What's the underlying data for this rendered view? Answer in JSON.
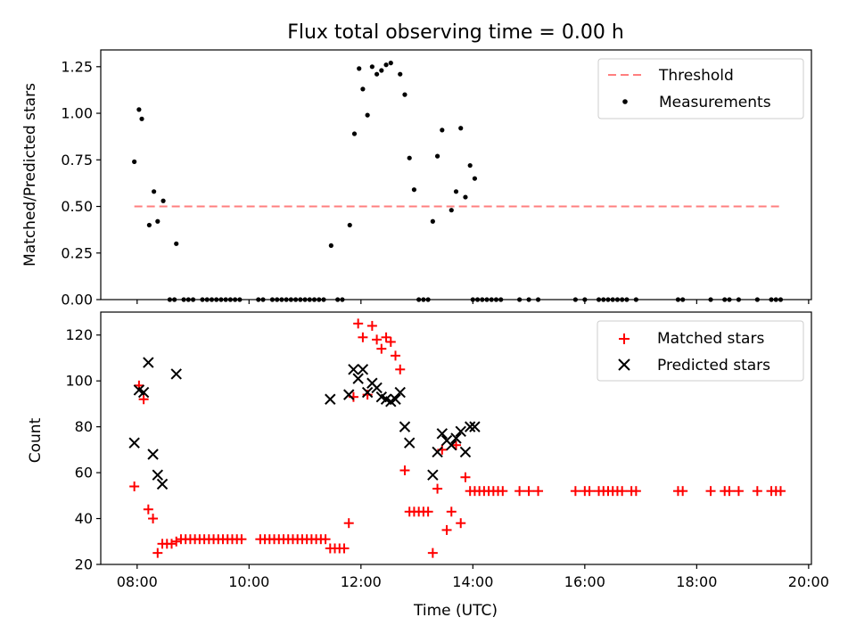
{
  "chart_data": [
    {
      "type": "scatter",
      "title": "Flux total observing time = 0.00 h",
      "xlabel": "",
      "ylabel": "Matched/Predicted stars",
      "xlim_hours": [
        7.35,
        20.05
      ],
      "ylim": [
        0,
        1.34
      ],
      "yticks": [
        "0.00",
        "0.25",
        "0.50",
        "0.75",
        "1.00",
        "1.25"
      ],
      "legend": {
        "position": "upper right",
        "entries": [
          "Threshold",
          "Measurements"
        ]
      },
      "colors": {
        "threshold": "#ff7f7f",
        "measurements": "#000000"
      },
      "threshold": {
        "value": 0.5,
        "x_range": [
          "07:57",
          "19:30"
        ]
      },
      "series": [
        {
          "name": "Measurements",
          "points": [
            [
              "07:57",
              0.74
            ],
            [
              "08:02",
              1.02
            ],
            [
              "08:05",
              0.97
            ],
            [
              "08:13",
              0.4
            ],
            [
              "08:18",
              0.58
            ],
            [
              "08:22",
              0.42
            ],
            [
              "08:28",
              0.53
            ],
            [
              "08:42",
              0.3
            ],
            [
              "11:28",
              0.29
            ],
            [
              "11:48",
              0.4
            ],
            [
              "11:53",
              0.89
            ],
            [
              "11:58",
              1.24
            ],
            [
              "12:02",
              1.13
            ],
            [
              "12:07",
              0.99
            ],
            [
              "12:12",
              1.25
            ],
            [
              "12:17",
              1.21
            ],
            [
              "12:22",
              1.23
            ],
            [
              "12:27",
              1.26
            ],
            [
              "12:32",
              1.27
            ],
            [
              "12:42",
              1.21
            ],
            [
              "12:47",
              1.1
            ],
            [
              "12:52",
              0.76
            ],
            [
              "12:57",
              0.59
            ],
            [
              "13:17",
              0.42
            ],
            [
              "13:22",
              0.77
            ],
            [
              "13:27",
              0.91
            ],
            [
              "13:37",
              0.48
            ],
            [
              "13:42",
              0.58
            ],
            [
              "13:47",
              0.92
            ],
            [
              "13:52",
              0.55
            ],
            [
              "13:57",
              0.72
            ],
            [
              "14:02",
              0.65
            ],
            [
              "08:35",
              0
            ],
            [
              "08:40",
              0
            ],
            [
              "08:50",
              0
            ],
            [
              "08:55",
              0
            ],
            [
              "09:00",
              0
            ],
            [
              "09:10",
              0
            ],
            [
              "09:15",
              0
            ],
            [
              "09:20",
              0
            ],
            [
              "09:25",
              0
            ],
            [
              "09:30",
              0
            ],
            [
              "09:35",
              0
            ],
            [
              "09:40",
              0
            ],
            [
              "09:45",
              0
            ],
            [
              "09:50",
              0
            ],
            [
              "10:10",
              0
            ],
            [
              "10:15",
              0
            ],
            [
              "10:25",
              0
            ],
            [
              "10:30",
              0
            ],
            [
              "10:35",
              0
            ],
            [
              "10:40",
              0
            ],
            [
              "10:45",
              0
            ],
            [
              "10:50",
              0
            ],
            [
              "10:55",
              0
            ],
            [
              "11:00",
              0
            ],
            [
              "11:05",
              0
            ],
            [
              "11:10",
              0
            ],
            [
              "11:15",
              0
            ],
            [
              "11:20",
              0
            ],
            [
              "11:35",
              0
            ],
            [
              "11:40",
              0
            ],
            [
              "13:02",
              0
            ],
            [
              "13:07",
              0
            ],
            [
              "13:12",
              0
            ],
            [
              "14:00",
              0
            ],
            [
              "14:05",
              0
            ],
            [
              "14:10",
              0
            ],
            [
              "14:15",
              0
            ],
            [
              "14:20",
              0
            ],
            [
              "14:25",
              0
            ],
            [
              "14:30",
              0
            ],
            [
              "14:50",
              0
            ],
            [
              "15:00",
              0
            ],
            [
              "15:10",
              0
            ],
            [
              "15:50",
              0
            ],
            [
              "16:00",
              0
            ],
            [
              "16:15",
              0
            ],
            [
              "16:20",
              0
            ],
            [
              "16:25",
              0
            ],
            [
              "16:30",
              0
            ],
            [
              "16:35",
              0
            ],
            [
              "16:40",
              0
            ],
            [
              "16:45",
              0
            ],
            [
              "16:55",
              0
            ],
            [
              "17:40",
              0
            ],
            [
              "17:45",
              0
            ],
            [
              "18:15",
              0
            ],
            [
              "18:30",
              0
            ],
            [
              "18:35",
              0
            ],
            [
              "18:45",
              0
            ],
            [
              "19:05",
              0
            ],
            [
              "19:20",
              0
            ],
            [
              "19:25",
              0
            ],
            [
              "19:30",
              0
            ]
          ]
        }
      ]
    },
    {
      "type": "scatter",
      "title": "",
      "xlabel": "Time (UTC)",
      "ylabel": "Count",
      "xlim_hours": [
        7.35,
        20.05
      ],
      "ylim": [
        20,
        130
      ],
      "yticks": [
        "20",
        "40",
        "60",
        "80",
        "100",
        "120"
      ],
      "xticks": [
        "08:00",
        "10:00",
        "12:00",
        "14:00",
        "16:00",
        "18:00",
        "20:00"
      ],
      "legend": {
        "position": "upper right",
        "entries": [
          "Matched stars",
          "Predicted stars"
        ]
      },
      "colors": {
        "matched": "#ff0000",
        "predicted": "#000000"
      },
      "series": [
        {
          "name": "Matched stars",
          "marker": "plus",
          "points": [
            [
              "07:57",
              54
            ],
            [
              "08:02",
              98
            ],
            [
              "08:07",
              92
            ],
            [
              "08:12",
              44
            ],
            [
              "08:17",
              40
            ],
            [
              "08:22",
              25
            ],
            [
              "08:27",
              29
            ],
            [
              "08:32",
              29
            ],
            [
              "08:37",
              29
            ],
            [
              "08:42",
              30
            ],
            [
              "08:47",
              31
            ],
            [
              "08:52",
              31
            ],
            [
              "08:57",
              31
            ],
            [
              "09:02",
              31
            ],
            [
              "09:07",
              31
            ],
            [
              "09:12",
              31
            ],
            [
              "09:17",
              31
            ],
            [
              "09:22",
              31
            ],
            [
              "09:27",
              31
            ],
            [
              "09:32",
              31
            ],
            [
              "09:37",
              31
            ],
            [
              "09:42",
              31
            ],
            [
              "09:47",
              31
            ],
            [
              "09:52",
              31
            ],
            [
              "10:12",
              31
            ],
            [
              "10:17",
              31
            ],
            [
              "10:22",
              31
            ],
            [
              "10:27",
              31
            ],
            [
              "10:32",
              31
            ],
            [
              "10:37",
              31
            ],
            [
              "10:42",
              31
            ],
            [
              "10:47",
              31
            ],
            [
              "10:52",
              31
            ],
            [
              "10:57",
              31
            ],
            [
              "11:02",
              31
            ],
            [
              "11:07",
              31
            ],
            [
              "11:12",
              31
            ],
            [
              "11:17",
              31
            ],
            [
              "11:22",
              31
            ],
            [
              "11:27",
              27
            ],
            [
              "11:32",
              27
            ],
            [
              "11:37",
              27
            ],
            [
              "11:42",
              27
            ],
            [
              "11:47",
              38
            ],
            [
              "11:52",
              93
            ],
            [
              "11:57",
              125
            ],
            [
              "12:02",
              119
            ],
            [
              "12:07",
              94
            ],
            [
              "12:12",
              124
            ],
            [
              "12:17",
              118
            ],
            [
              "12:22",
              114
            ],
            [
              "12:27",
              119
            ],
            [
              "12:32",
              117
            ],
            [
              "12:37",
              111
            ],
            [
              "12:42",
              105
            ],
            [
              "12:47",
              61
            ],
            [
              "12:52",
              43
            ],
            [
              "12:57",
              43
            ],
            [
              "13:02",
              43
            ],
            [
              "13:07",
              43
            ],
            [
              "13:12",
              43
            ],
            [
              "13:17",
              25
            ],
            [
              "13:22",
              53
            ],
            [
              "13:27",
              70
            ],
            [
              "13:32",
              35
            ],
            [
              "13:37",
              43
            ],
            [
              "13:42",
              72
            ],
            [
              "13:47",
              38
            ],
            [
              "13:52",
              58
            ],
            [
              "13:57",
              52
            ],
            [
              "14:02",
              52
            ],
            [
              "14:07",
              52
            ],
            [
              "14:12",
              52
            ],
            [
              "14:17",
              52
            ],
            [
              "14:22",
              52
            ],
            [
              "14:27",
              52
            ],
            [
              "14:32",
              52
            ],
            [
              "14:50",
              52
            ],
            [
              "15:00",
              52
            ],
            [
              "15:10",
              52
            ],
            [
              "15:50",
              52
            ],
            [
              "16:00",
              52
            ],
            [
              "16:05",
              52
            ],
            [
              "16:15",
              52
            ],
            [
              "16:20",
              52
            ],
            [
              "16:25",
              52
            ],
            [
              "16:30",
              52
            ],
            [
              "16:35",
              52
            ],
            [
              "16:40",
              52
            ],
            [
              "16:50",
              52
            ],
            [
              "16:55",
              52
            ],
            [
              "17:40",
              52
            ],
            [
              "17:45",
              52
            ],
            [
              "18:15",
              52
            ],
            [
              "18:30",
              52
            ],
            [
              "18:35",
              52
            ],
            [
              "18:45",
              52
            ],
            [
              "19:05",
              52
            ],
            [
              "19:20",
              52
            ],
            [
              "19:25",
              52
            ],
            [
              "19:30",
              52
            ]
          ]
        },
        {
          "name": "Predicted stars",
          "marker": "x",
          "points": [
            [
              "07:57",
              73
            ],
            [
              "08:02",
              96
            ],
            [
              "08:07",
              95
            ],
            [
              "08:12",
              108
            ],
            [
              "08:17",
              68
            ],
            [
              "08:22",
              59
            ],
            [
              "08:27",
              55
            ],
            [
              "08:42",
              103
            ],
            [
              "11:27",
              92
            ],
            [
              "11:47",
              94
            ],
            [
              "11:52",
              105
            ],
            [
              "11:57",
              101
            ],
            [
              "12:02",
              105
            ],
            [
              "12:07",
              95
            ],
            [
              "12:12",
              99
            ],
            [
              "12:17",
              97
            ],
            [
              "12:22",
              93
            ],
            [
              "12:27",
              92
            ],
            [
              "12:32",
              91
            ],
            [
              "12:37",
              92
            ],
            [
              "12:42",
              95
            ],
            [
              "12:47",
              80
            ],
            [
              "12:52",
              73
            ],
            [
              "13:17",
              59
            ],
            [
              "13:22",
              69
            ],
            [
              "13:27",
              77
            ],
            [
              "13:32",
              74
            ],
            [
              "13:37",
              72
            ],
            [
              "13:42",
              75
            ],
            [
              "13:47",
              78
            ],
            [
              "13:52",
              69
            ],
            [
              "13:57",
              80
            ],
            [
              "14:02",
              80
            ]
          ]
        }
      ]
    }
  ]
}
